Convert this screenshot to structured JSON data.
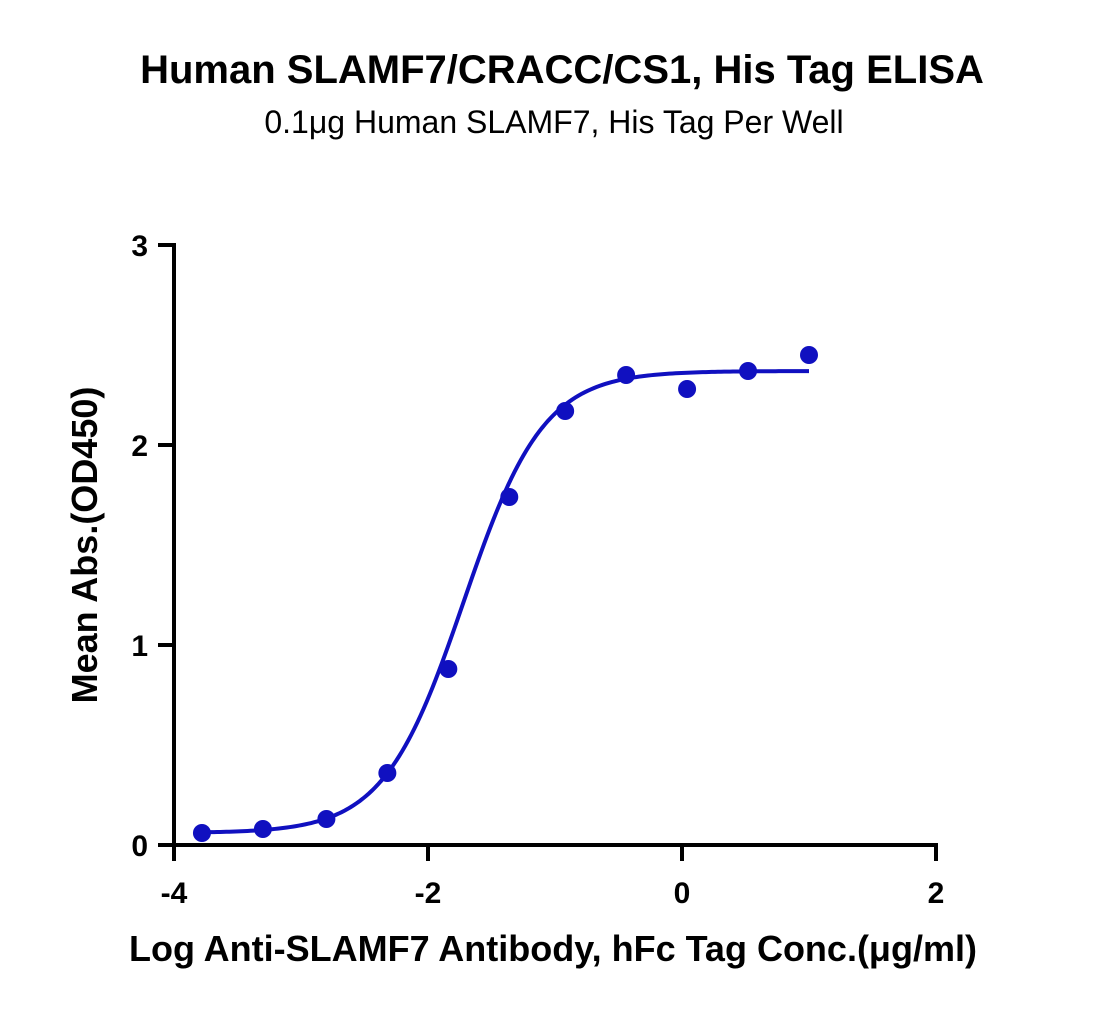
{
  "chart_data": {
    "type": "scatter",
    "title": "Human SLAMF7/CRACC/CS1, His Tag ELISA",
    "subtitle": "0.1μg  Human SLAMF7, His Tag Per Well",
    "xlabel": "Log Anti-SLAMF7 Antibody, hFc Tag Conc.(μg/ml)",
    "ylabel": "Mean Abs.(OD450)",
    "xlim": [
      -4,
      2
    ],
    "ylim": [
      0,
      3
    ],
    "x_ticks": [
      -4,
      -2,
      0,
      2
    ],
    "x_tick_labels": [
      "-4",
      "-2",
      "0",
      "2"
    ],
    "y_ticks": [
      0,
      1,
      2,
      3
    ],
    "y_tick_labels": [
      "0",
      "1",
      "2",
      "3"
    ],
    "grid": false,
    "color": "#1010c0",
    "series": [
      {
        "x": [
          -3.78,
          -3.3,
          -2.8,
          -2.32,
          -1.84,
          -1.36,
          -0.92,
          -0.44,
          0.04,
          0.52,
          1.0
        ],
        "y": [
          0.06,
          0.08,
          0.13,
          0.36,
          0.88,
          1.74,
          2.17,
          2.35,
          2.28,
          2.37,
          2.45
        ]
      }
    ],
    "fit_curve": {
      "model": "4PL",
      "bottom": 0.06,
      "top": 2.37,
      "log_ec50": -1.72,
      "hill_slope": 1.38,
      "x_range": [
        -3.78,
        1.0
      ]
    }
  }
}
